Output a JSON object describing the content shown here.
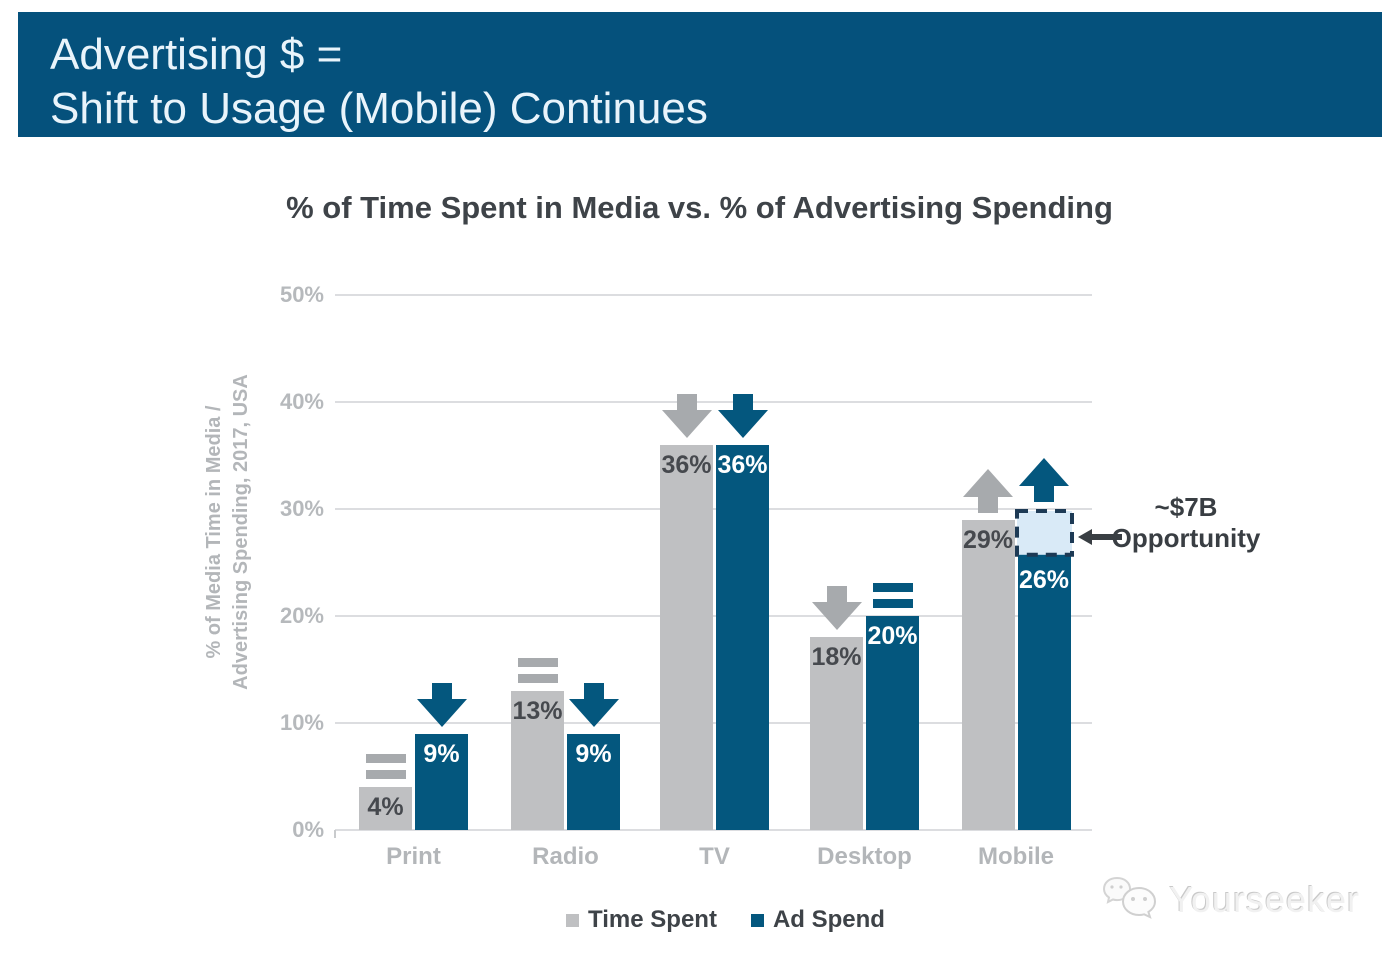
{
  "banner": {
    "line1": "Advertising $ =",
    "line2": "Shift to Usage (Mobile) Continues",
    "background": "#05517c",
    "text_color": "#e9f4fb"
  },
  "y_axis": {
    "label_line1": "% of Media Time in Media /",
    "label_line2": "Advertising Spending, 2017, USA",
    "ticks": [
      "50%",
      "40%",
      "30%",
      "20%",
      "10%",
      "0%"
    ]
  },
  "chart_data": {
    "type": "bar",
    "title": "% of Time Spent in Media vs. % of Advertising Spending",
    "xlabel": "",
    "ylabel": "% of Media Time in Media / Advertising Spending, 2017, USA",
    "ylim": [
      0,
      50
    ],
    "grid": true,
    "legend_position": "bottom",
    "categories": [
      "Print",
      "Radio",
      "TV",
      "Desktop",
      "Mobile"
    ],
    "series": [
      {
        "name": "Time Spent",
        "color": "#bfc0c2",
        "arrow_color": "#a7aaad",
        "label_color": "#46494e",
        "values": [
          4,
          13,
          36,
          18,
          29
        ],
        "data_labels": [
          "4%",
          "13%",
          "36%",
          "18%",
          "29%"
        ],
        "trends": [
          "flat",
          "flat",
          "down",
          "down",
          "up"
        ]
      },
      {
        "name": "Ad Spend",
        "color": "#04577e",
        "arrow_color": "#04577e",
        "label_color": "#ffffff",
        "values": [
          9,
          9,
          36,
          20,
          26
        ],
        "data_labels": [
          "9%",
          "9%",
          "36%",
          "20%",
          "26%"
        ],
        "trends": [
          "down",
          "down",
          "down",
          "flat",
          "up"
        ]
      }
    ],
    "annotation": {
      "line1": "~$7B",
      "line2": "Opportunity",
      "category": "Mobile",
      "series": "Ad Spend",
      "gap_top_percent": 30,
      "box_fill": "#d9eaf7",
      "box_border": "#1d3a55",
      "arrow_color": "#393e43"
    }
  },
  "legend": {
    "items": [
      {
        "label": "Time Spent",
        "color": "#bfc0c2"
      },
      {
        "label": "Ad Spend",
        "color": "#04577e"
      }
    ]
  },
  "watermark": {
    "text": "Yourseeker"
  }
}
